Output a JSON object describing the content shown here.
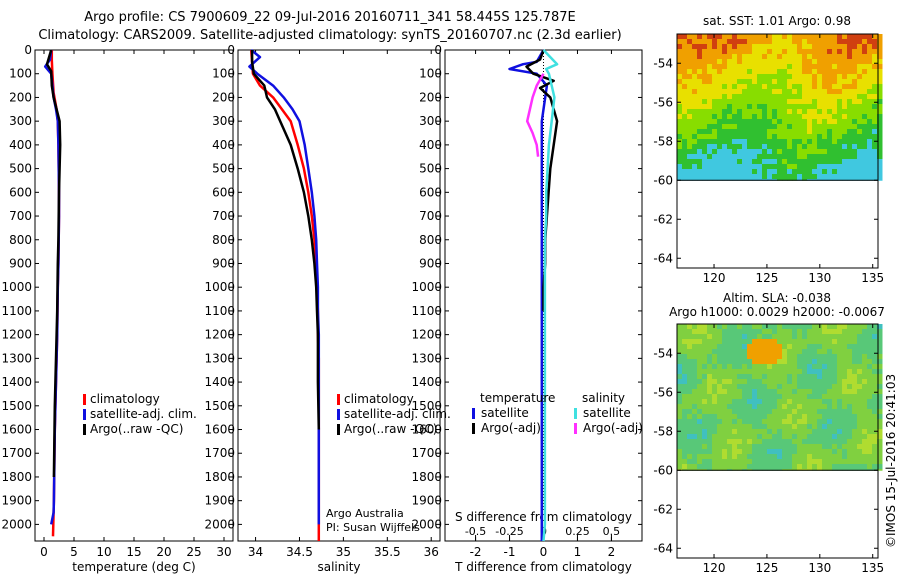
{
  "title_line1": "Argo profile: CS 7900609_22 09-Jul-2016 20160711_341 58.445S 125.787E",
  "title_line2": "Climatology: CARS2009. Satellite-adjusted climatology: synTS_20160707.nc (2.3d earlier)",
  "attribution": [
    "Argo Australia",
    "PI: Susan Wijffels"
  ],
  "credit": "©IMOS 15-Jul-2016 20:41:03",
  "colors": {
    "climatology": "#ff0000",
    "satellite_clim": "#1010e0",
    "argo": "#000000",
    "satellite_salinity": "#40e0e0",
    "argo_salinity": "#ff30ff"
  },
  "chart_data": [
    {
      "type": "line",
      "xlabel": "temperature (deg C)",
      "ylabel": "",
      "xlim": [
        -1.5,
        31.5
      ],
      "ylim": [
        2070,
        0
      ],
      "xticks": [
        0,
        5,
        10,
        15,
        20,
        25,
        30
      ],
      "yticks": [
        0,
        100,
        200,
        300,
        400,
        500,
        600,
        700,
        800,
        900,
        1000,
        1100,
        1200,
        1300,
        1400,
        1500,
        1600,
        1700,
        1800,
        1900,
        2000
      ],
      "legend": [
        "climatology",
        "satellite-adj. clim.",
        "Argo(..raw -QC)"
      ],
      "series": [
        {
          "name": "climatology",
          "color": "#ff0000",
          "x": [
            1.3,
            1.3,
            1.4,
            1.6,
            2.1,
            2.3,
            2.4,
            2.45,
            2.5,
            2.5,
            2.45,
            2.4,
            2.3,
            2.25,
            2.2,
            2.1,
            2.0,
            1.9,
            1.8,
            1.75,
            1.7,
            1.65,
            1.6,
            1.55,
            1.5
          ],
          "y": [
            0,
            40,
            100,
            180,
            250,
            300,
            400,
            500,
            600,
            700,
            800,
            900,
            1000,
            1100,
            1200,
            1300,
            1400,
            1500,
            1600,
            1700,
            1800,
            1900,
            1950,
            2000,
            2050
          ]
        },
        {
          "name": "satellite-adj. clim.",
          "color": "#1010e0",
          "x": [
            1.2,
            1.0,
            0.2,
            1.2,
            1.4,
            1.6,
            2.0,
            2.3,
            2.4,
            2.45,
            2.5,
            2.5,
            2.45,
            2.4,
            2.3,
            2.25,
            2.2,
            2.1,
            2.0,
            1.9,
            1.8,
            1.75,
            1.7,
            1.65,
            1.6,
            1.2
          ],
          "y": [
            0,
            40,
            70,
            100,
            150,
            200,
            250,
            300,
            400,
            500,
            600,
            700,
            800,
            900,
            1000,
            1100,
            1200,
            1300,
            1400,
            1500,
            1600,
            1700,
            1800,
            1900,
            1950,
            2000
          ]
        },
        {
          "name": "Argo(..raw -QC)",
          "color": "#000000",
          "x": [
            1.2,
            0.5,
            1.2,
            1.3,
            1.6,
            2.1,
            2.6,
            2.7,
            2.6,
            2.5,
            2.45,
            2.4,
            2.3,
            2.25,
            2.2,
            2.1,
            2.0,
            1.9,
            1.8,
            1.75,
            1.7,
            1.65
          ],
          "y": [
            0,
            60,
            90,
            150,
            200,
            250,
            300,
            400,
            500,
            600,
            700,
            800,
            900,
            1000,
            1100,
            1200,
            1300,
            1400,
            1500,
            1600,
            1700,
            1800
          ]
        }
      ]
    },
    {
      "type": "line",
      "xlabel": "salinity",
      "ylabel": "",
      "xlim": [
        33.8,
        36.1
      ],
      "ylim": [
        2070,
        0
      ],
      "xticks": [
        34,
        34.5,
        35,
        35.5,
        36
      ],
      "yticks": [
        0,
        100,
        200,
        300,
        400,
        500,
        600,
        700,
        800,
        900,
        1000,
        1100,
        1200,
        1300,
        1400,
        1500,
        1600,
        1700,
        1800,
        1900,
        2000
      ],
      "legend": [
        "climatology",
        "satellite-adj. clim.",
        "Argo(..raw -QC)"
      ],
      "series": [
        {
          "name": "climatology",
          "color": "#ff0000",
          "x": [
            33.95,
            33.96,
            33.97,
            34.05,
            34.2,
            34.3,
            34.4,
            34.48,
            34.55,
            34.6,
            34.64,
            34.67,
            34.69,
            34.7,
            34.71,
            34.71,
            34.72,
            34.72,
            34.72,
            34.72,
            34.72,
            34.72,
            34.72
          ],
          "y": [
            0,
            50,
            100,
            150,
            200,
            250,
            300,
            400,
            500,
            600,
            700,
            800,
            900,
            1000,
            1100,
            1200,
            1300,
            1400,
            1500,
            1600,
            1800,
            2000,
            2070
          ]
        },
        {
          "name": "satellite-adj. clim.",
          "color": "#1010e0",
          "x": [
            33.95,
            34.05,
            33.93,
            34.02,
            34.2,
            34.32,
            34.42,
            34.5,
            34.56,
            34.6,
            34.64,
            34.67,
            34.69,
            34.7,
            34.71,
            34.71,
            34.72,
            34.72,
            34.72,
            34.72,
            34.72,
            34.72,
            34.72,
            34.72
          ],
          "y": [
            0,
            30,
            70,
            100,
            150,
            200,
            250,
            300,
            400,
            500,
            600,
            700,
            800,
            900,
            1000,
            1100,
            1200,
            1300,
            1400,
            1500,
            1600,
            1800,
            1950,
            2000
          ]
        },
        {
          "name": "Argo(..raw -QC)",
          "color": "#000000",
          "x": [
            33.96,
            33.96,
            33.98,
            34.1,
            34.13,
            34.22,
            34.28,
            34.4,
            34.48,
            34.55,
            34.6,
            34.64,
            34.67,
            34.69,
            34.7,
            34.71,
            34.71,
            34.72
          ],
          "y": [
            0,
            50,
            100,
            150,
            200,
            250,
            300,
            400,
            500,
            600,
            700,
            800,
            900,
            1000,
            1100,
            1200,
            1400,
            1600
          ]
        }
      ]
    },
    {
      "type": "line",
      "xlabel": "T difference from climatology",
      "x2label": "S difference from climatology",
      "ylabel": "",
      "xlim": [
        -2.9,
        2.9
      ],
      "x2lim": [
        -0.725,
        0.725
      ],
      "ylim": [
        2070,
        0
      ],
      "xticks": [
        -2,
        -1,
        0,
        1,
        2
      ],
      "x2ticks": [
        -0.5,
        -0.25,
        0,
        0.25,
        0.5
      ],
      "x2ticklabels": [
        "-0.5",
        "-0.25",
        "0",
        "0.25",
        "0.5"
      ],
      "yticks": [
        0,
        100,
        200,
        300,
        400,
        500,
        600,
        700,
        800,
        900,
        1000,
        1100,
        1200,
        1300,
        1400,
        1500,
        1600,
        1700,
        1800,
        1900,
        2000
      ],
      "legend_headers": [
        "temperature",
        "salinity"
      ],
      "legend": [
        "satellite",
        "Argo(-adj)",
        "satellite",
        "Argo(-adj)"
      ],
      "series": [
        {
          "name": "satellite",
          "group": "temperature",
          "color": "#1010e0",
          "axis": "T",
          "x": [
            0,
            -0.2,
            -0.6,
            -1.0,
            -0.2,
            0.1,
            0.05,
            -0.05,
            -0.05,
            -0.05,
            -0.05,
            -0.05,
            -0.05,
            -0.05,
            -0.05,
            -0.05,
            -0.05,
            -0.05,
            -0.05,
            -0.05,
            -0.05,
            -0.05,
            -0.05,
            -0.05
          ],
          "y": [
            0,
            50,
            60,
            80,
            100,
            150,
            200,
            300,
            400,
            500,
            600,
            700,
            800,
            900,
            1000,
            1100,
            1200,
            1300,
            1400,
            1500,
            1600,
            1800,
            2000,
            2070
          ]
        },
        {
          "name": "Argo(-adj)",
          "group": "temperature",
          "color": "#000000",
          "axis": "T",
          "x": [
            0,
            -0.1,
            -0.5,
            -0.3,
            0.3,
            -0.1,
            0.2,
            0.4,
            0.3,
            0.2,
            0.15,
            0.1,
            0.05,
            0.05,
            0.0,
            0.0
          ],
          "y": [
            0,
            40,
            70,
            100,
            130,
            160,
            200,
            300,
            400,
            500,
            600,
            700,
            800,
            900,
            1000,
            1100
          ]
        },
        {
          "name": "satellite",
          "group": "salinity",
          "color": "#40e0e0",
          "axis": "S",
          "x": [
            0,
            0.05,
            0.1,
            0.02,
            0.04,
            0.06,
            0.08,
            0.06,
            0.04,
            0.03,
            0.02,
            0.02,
            0.01,
            0.01,
            0.01,
            0.01,
            0.01,
            0.01,
            0.01,
            0.01,
            0.01,
            0.0
          ],
          "y": [
            0,
            30,
            60,
            80,
            100,
            150,
            200,
            300,
            400,
            500,
            600,
            700,
            800,
            900,
            1000,
            1100,
            1200,
            1400,
            1600,
            1800,
            2000,
            2070
          ]
        },
        {
          "name": "Argo(-adj)",
          "group": "salinity",
          "color": "#ff30ff",
          "axis": "S",
          "x": [
            0,
            -0.05,
            -0.08,
            -0.1,
            -0.12,
            -0.08,
            -0.05,
            -0.04
          ],
          "y": [
            100,
            150,
            200,
            250,
            300,
            350,
            400,
            450
          ]
        }
      ]
    },
    {
      "type": "heatmap",
      "title": "sat. SST: 1.01 Argo: 0.98",
      "xlim": [
        116.5,
        135.5
      ],
      "ylim": [
        -64.5,
        -52.5
      ],
      "xticks": [
        120,
        125,
        130,
        135
      ],
      "yticks": [
        -54,
        -56,
        -58,
        -60,
        -62,
        -64
      ],
      "data_extent_lat": [
        -60,
        -52.5
      ],
      "colorscale": [
        "#40c8e0",
        "#30c030",
        "#88dd00",
        "#e8e000",
        "#f0a000",
        "#d04010"
      ]
    },
    {
      "type": "heatmap",
      "title": "Altim. SLA: -0.038",
      "subtitle": "Argo h1000: 0.0029 h2000: -0.0067",
      "xlim": [
        116.5,
        135.5
      ],
      "ylim": [
        -64.5,
        -52.5
      ],
      "xticks": [
        120,
        125,
        130,
        135
      ],
      "yticks": [
        -54,
        -56,
        -58,
        -60,
        -62,
        -64
      ],
      "data_extent_lat": [
        -60,
        -52.5
      ],
      "colorscale": [
        "#40c0c0",
        "#58c878",
        "#80d040",
        "#b0dc30",
        "#e0e020",
        "#f0a000"
      ]
    }
  ]
}
